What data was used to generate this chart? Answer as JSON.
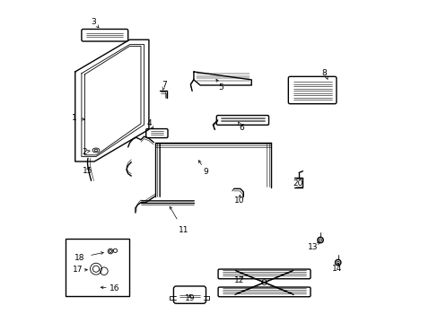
{
  "title": "",
  "background_color": "#ffffff",
  "line_color": "#000000",
  "figsize": [
    4.89,
    3.6
  ],
  "dpi": 100,
  "label_positions": {
    "1": [
      0.047,
      0.635,
      0.09,
      0.63
    ],
    "2": [
      0.078,
      0.53,
      0.105,
      0.535
    ],
    "3": [
      0.108,
      0.935,
      0.13,
      0.91
    ],
    "4": [
      0.282,
      0.62,
      0.295,
      0.6
    ],
    "5": [
      0.505,
      0.732,
      0.485,
      0.765
    ],
    "6": [
      0.568,
      0.605,
      0.555,
      0.632
    ],
    "7": [
      0.328,
      0.738,
      0.323,
      0.722
    ],
    "8": [
      0.828,
      0.775,
      0.842,
      0.748
    ],
    "9": [
      0.458,
      0.468,
      0.43,
      0.512
    ],
    "10": [
      0.562,
      0.378,
      0.565,
      0.405
    ],
    "11": [
      0.388,
      0.285,
      0.34,
      0.368
    ],
    "12": [
      0.562,
      0.13,
      0.58,
      0.148
    ],
    "13": [
      0.792,
      0.232,
      0.82,
      0.255
    ],
    "14": [
      0.868,
      0.165,
      0.872,
      0.185
    ],
    "15": [
      0.088,
      0.472,
      0.095,
      0.482
    ],
    "16": [
      0.172,
      0.105,
      0.12,
      0.108
    ],
    "17": [
      0.058,
      0.162,
      0.098,
      0.162
    ],
    "18": [
      0.063,
      0.2,
      0.148,
      0.218
    ],
    "19": [
      0.408,
      0.072,
      0.408,
      0.085
    ],
    "20": [
      0.745,
      0.432,
      0.748,
      0.435
    ]
  }
}
